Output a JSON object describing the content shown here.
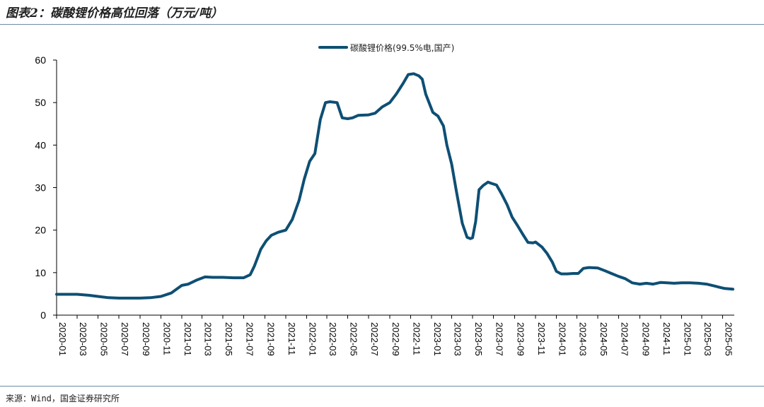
{
  "header": {
    "title": "图表2：碳酸锂价格高位回落（万元/吨）"
  },
  "footer": {
    "source": "来源：Wind，国金证券研究所"
  },
  "colors": {
    "line": "#0e4f74",
    "axis": "#000000",
    "rule": "#6e8ba3"
  },
  "chart_data": {
    "type": "line",
    "title": "图表2：碳酸锂价格高位回落（万元/吨）",
    "legend_position": "top-center",
    "grid": false,
    "ylim": [
      0,
      60
    ],
    "y_ticks": [
      0,
      10,
      20,
      30,
      40,
      50,
      60
    ],
    "x_ticks": [
      "2020-01",
      "2020-03",
      "2020-05",
      "2020-07",
      "2020-09",
      "2020-11",
      "2021-01",
      "2021-03",
      "2021-05",
      "2021-07",
      "2021-09",
      "2021-11",
      "2022-01",
      "2022-03",
      "2022-05",
      "2022-07",
      "2022-09",
      "2022-11",
      "2023-01",
      "2023-03",
      "2023-05",
      "2023-07",
      "2023-09",
      "2023-11",
      "2024-01",
      "2024-03",
      "2024-05",
      "2024-07",
      "2024-09",
      "2024-11",
      "2025-01",
      "2025-03",
      "2025-05"
    ],
    "series": [
      {
        "name": "碳酸锂价格(99.5%电,国产)",
        "points": [
          [
            "2020-01-01",
            4.9
          ],
          [
            "2020-02-01",
            4.9
          ],
          [
            "2020-03-01",
            4.9
          ],
          [
            "2020-04-01",
            4.7
          ],
          [
            "2020-05-01",
            4.4
          ],
          [
            "2020-06-01",
            4.1
          ],
          [
            "2020-07-01",
            4.0
          ],
          [
            "2020-08-01",
            4.0
          ],
          [
            "2020-09-01",
            4.0
          ],
          [
            "2020-10-01",
            4.1
          ],
          [
            "2020-11-01",
            4.4
          ],
          [
            "2020-12-01",
            5.2
          ],
          [
            "2021-01-01",
            7.0
          ],
          [
            "2021-01-20",
            7.3
          ],
          [
            "2021-02-15",
            8.3
          ],
          [
            "2021-03-10",
            9.0
          ],
          [
            "2021-04-01",
            8.9
          ],
          [
            "2021-05-01",
            8.9
          ],
          [
            "2021-06-01",
            8.8
          ],
          [
            "2021-07-01",
            8.8
          ],
          [
            "2021-07-20",
            9.5
          ],
          [
            "2021-08-01",
            11.5
          ],
          [
            "2021-08-20",
            15.5
          ],
          [
            "2021-09-05",
            17.5
          ],
          [
            "2021-09-20",
            18.8
          ],
          [
            "2021-10-10",
            19.5
          ],
          [
            "2021-11-01",
            20.0
          ],
          [
            "2021-11-20",
            22.5
          ],
          [
            "2021-12-10",
            27.0
          ],
          [
            "2021-12-25",
            32.0
          ],
          [
            "2022-01-10",
            36.2
          ],
          [
            "2022-01-25",
            38.0
          ],
          [
            "2022-02-10",
            46.0
          ],
          [
            "2022-02-25",
            50.0
          ],
          [
            "2022-03-10",
            50.2
          ],
          [
            "2022-03-31",
            50.0
          ],
          [
            "2022-04-15",
            46.4
          ],
          [
            "2022-05-01",
            46.2
          ],
          [
            "2022-05-15",
            46.4
          ],
          [
            "2022-06-01",
            47.0
          ],
          [
            "2022-07-01",
            47.1
          ],
          [
            "2022-07-20",
            47.5
          ],
          [
            "2022-08-10",
            49.0
          ],
          [
            "2022-09-01",
            50.0
          ],
          [
            "2022-09-20",
            52.0
          ],
          [
            "2022-10-10",
            54.5
          ],
          [
            "2022-10-25",
            56.6
          ],
          [
            "2022-11-10",
            56.8
          ],
          [
            "2022-11-25",
            56.3
          ],
          [
            "2022-12-05",
            55.5
          ],
          [
            "2022-12-15",
            52.0
          ],
          [
            "2023-01-05",
            47.7
          ],
          [
            "2023-01-20",
            46.8
          ],
          [
            "2023-02-05",
            44.5
          ],
          [
            "2023-02-15",
            40.0
          ],
          [
            "2023-03-01",
            35.5
          ],
          [
            "2023-03-15",
            29.0
          ],
          [
            "2023-04-01",
            21.6
          ],
          [
            "2023-04-15",
            18.3
          ],
          [
            "2023-04-25",
            18.0
          ],
          [
            "2023-05-01",
            18.2
          ],
          [
            "2023-05-10",
            22.0
          ],
          [
            "2023-05-20",
            29.5
          ],
          [
            "2023-06-01",
            30.5
          ],
          [
            "2023-06-15",
            31.3
          ],
          [
            "2023-06-25",
            31.0
          ],
          [
            "2023-07-10",
            30.6
          ],
          [
            "2023-07-25",
            28.5
          ],
          [
            "2023-08-10",
            26.0
          ],
          [
            "2023-08-25",
            23.0
          ],
          [
            "2023-09-10",
            21.0
          ],
          [
            "2023-09-25",
            19.0
          ],
          [
            "2023-10-10",
            17.1
          ],
          [
            "2023-10-25",
            17.0
          ],
          [
            "2023-11-01",
            17.2
          ],
          [
            "2023-11-20",
            16.0
          ],
          [
            "2023-12-05",
            14.5
          ],
          [
            "2023-12-20",
            12.5
          ],
          [
            "2024-01-01",
            10.3
          ],
          [
            "2024-01-15",
            9.7
          ],
          [
            "2024-02-01",
            9.7
          ],
          [
            "2024-02-20",
            9.8
          ],
          [
            "2024-03-05",
            9.8
          ],
          [
            "2024-03-20",
            11.0
          ],
          [
            "2024-04-05",
            11.2
          ],
          [
            "2024-05-01",
            11.1
          ],
          [
            "2024-05-20",
            10.5
          ],
          [
            "2024-06-10",
            9.8
          ],
          [
            "2024-07-01",
            9.1
          ],
          [
            "2024-07-20",
            8.6
          ],
          [
            "2024-08-10",
            7.6
          ],
          [
            "2024-09-01",
            7.3
          ],
          [
            "2024-09-20",
            7.5
          ],
          [
            "2024-10-10",
            7.3
          ],
          [
            "2024-11-01",
            7.7
          ],
          [
            "2024-11-20",
            7.6
          ],
          [
            "2024-12-10",
            7.5
          ],
          [
            "2025-01-01",
            7.6
          ],
          [
            "2025-01-25",
            7.6
          ],
          [
            "2025-02-20",
            7.5
          ],
          [
            "2025-03-15",
            7.3
          ],
          [
            "2025-04-10",
            6.8
          ],
          [
            "2025-05-05",
            6.3
          ],
          [
            "2025-05-31",
            6.1
          ]
        ]
      }
    ]
  }
}
